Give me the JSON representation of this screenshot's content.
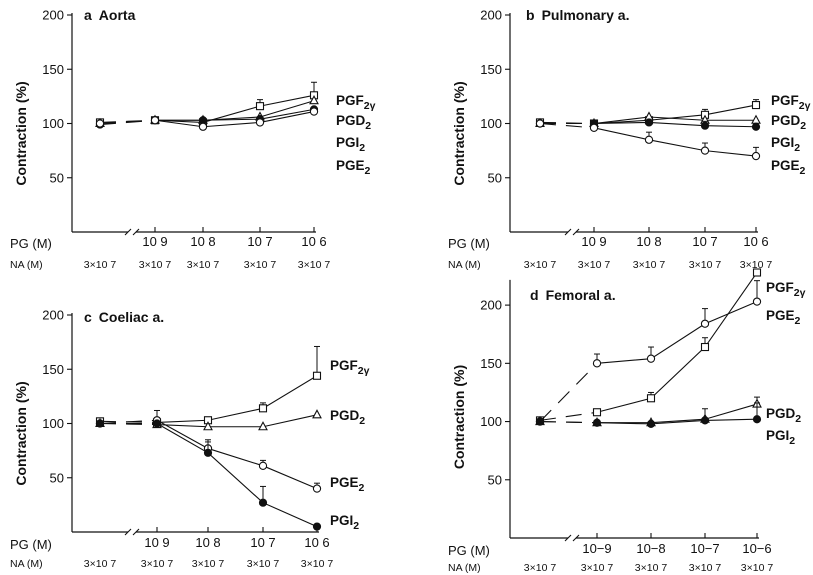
{
  "chart_data": [
    {
      "type": "line",
      "panel_letter": "a",
      "title": "Aorta",
      "ylabel": "Contraction (%)",
      "ylim": [
        0,
        200
      ],
      "yticks": [
        50,
        100,
        150,
        200
      ],
      "row_labels": {
        "pg": "PG (M)",
        "na": "NA (M)"
      },
      "x_pg_labels": [
        "",
        "10 9",
        "10 8",
        "10 7",
        "10 6"
      ],
      "x_na_labels": [
        "3×10 7",
        "3×10 7",
        "3×10 7",
        "3×10 7",
        "3×10 7"
      ],
      "series": [
        {
          "name": "PGF2γ",
          "label_main": "PGF",
          "label_sub": "2γ",
          "marker": "square",
          "values": [
            101,
            103,
            101,
            116,
            126
          ],
          "errors": [
            0,
            0,
            0,
            6,
            12
          ]
        },
        {
          "name": "PGD2",
          "label_main": "PGD",
          "label_sub": "2",
          "marker": "triangle",
          "values": [
            100,
            103,
            103,
            106,
            121
          ],
          "errors": [
            0,
            0,
            0,
            0,
            0
          ]
        },
        {
          "name": "PGI2",
          "label_main": "PGI",
          "label_sub": "2",
          "marker": "filled",
          "values": [
            99,
            103,
            103,
            104,
            113
          ],
          "errors": [
            0,
            0,
            0,
            0,
            0
          ]
        },
        {
          "name": "PGE2",
          "label_main": "PGE",
          "label_sub": "2",
          "marker": "circle",
          "values": [
            100,
            103,
            97,
            101,
            111
          ],
          "errors": [
            0,
            0,
            0,
            0,
            0
          ]
        }
      ]
    },
    {
      "type": "line",
      "panel_letter": "b",
      "title": "Pulmonary a.",
      "ylabel": "Contraction (%)",
      "ylim": [
        0,
        200
      ],
      "yticks": [
        50,
        100,
        150,
        200
      ],
      "row_labels": {
        "pg": "PG (M)",
        "na": "NA (M)"
      },
      "x_pg_labels": [
        "",
        "10 9",
        "10 8",
        "10 7",
        "10 6"
      ],
      "x_na_labels": [
        "3×10 7",
        "3×10 7",
        "3×10 7",
        "3×10 7",
        "3×10 7"
      ],
      "series": [
        {
          "name": "PGF2γ",
          "label_main": "PGF",
          "label_sub": "2γ",
          "marker": "square",
          "values": [
            101,
            100,
            103,
            108,
            117
          ],
          "errors": [
            0,
            0,
            0,
            5,
            5
          ]
        },
        {
          "name": "PGD2",
          "label_main": "PGD",
          "label_sub": "2",
          "marker": "triangle",
          "values": [
            100,
            100,
            106,
            103,
            103
          ],
          "errors": [
            0,
            0,
            0,
            0,
            0
          ]
        },
        {
          "name": "PGI2",
          "label_main": "PGI",
          "label_sub": "2",
          "marker": "filled",
          "values": [
            100,
            100,
            101,
            98,
            97
          ],
          "errors": [
            0,
            0,
            0,
            4,
            0
          ]
        },
        {
          "name": "PGE2",
          "label_main": "PGE",
          "label_sub": "2",
          "marker": "circle",
          "values": [
            100,
            96,
            85,
            75,
            70
          ],
          "errors": [
            0,
            0,
            7,
            7,
            8
          ]
        }
      ]
    },
    {
      "type": "line",
      "panel_letter": "c",
      "title": "Coeliac a.",
      "ylabel": "Contraction (%)",
      "ylim": [
        0,
        200
      ],
      "yticks": [
        50,
        100,
        150,
        200
      ],
      "row_labels": {
        "pg": "PG (M)",
        "na": "NA (M)"
      },
      "x_pg_labels": [
        "",
        "10 9",
        "10 8",
        "10 7",
        "10 6"
      ],
      "x_na_labels": [
        "3×10 7",
        "3×10 7",
        "3×10 7",
        "3×10 7",
        "3×10 7"
      ],
      "series": [
        {
          "name": "PGF2γ",
          "label_main": "PGF",
          "label_sub": "2γ",
          "marker": "square",
          "values": [
            102,
            101,
            103,
            114,
            144
          ],
          "errors": [
            0,
            0,
            0,
            5,
            27
          ]
        },
        {
          "name": "PGD2",
          "label_main": "PGD",
          "label_sub": "2",
          "marker": "triangle",
          "values": [
            100,
            99,
            97,
            97,
            108
          ],
          "errors": [
            0,
            0,
            0,
            0,
            0
          ]
        },
        {
          "name": "PGE2",
          "label_main": "PGE",
          "label_sub": "2",
          "marker": "circle",
          "values": [
            100,
            103,
            77,
            61,
            40
          ],
          "errors": [
            0,
            9,
            6,
            5,
            5
          ]
        },
        {
          "name": "PGI2",
          "label_main": "PGI",
          "label_sub": "2",
          "marker": "filled",
          "values": [
            100,
            100,
            73,
            27,
            5
          ],
          "errors": [
            0,
            0,
            12,
            15,
            0
          ]
        }
      ]
    },
    {
      "type": "line",
      "panel_letter": "d",
      "title": "Femoral a.",
      "ylabel": "Contraction (%)",
      "ylim": [
        0,
        225
      ],
      "yticks": [
        50,
        100,
        150,
        200
      ],
      "row_labels": {
        "pg": "PG (M)",
        "na": "NA (M)"
      },
      "x_pg_labels": [
        "",
        "10−9",
        "10−8",
        "10−7",
        "10−6"
      ],
      "x_na_labels": [
        "3×10 7",
        "3×10 7",
        "3×10 7",
        "3×10 7",
        "3×10 7"
      ],
      "series": [
        {
          "name": "PGF2γ",
          "label_main": "PGF",
          "label_sub": "2γ",
          "marker": "square",
          "values": [
            101,
            108,
            120,
            164,
            228
          ],
          "errors": [
            0,
            0,
            5,
            8,
            0
          ]
        },
        {
          "name": "PGE2",
          "label_main": "PGE",
          "label_sub": "2",
          "marker": "circle",
          "values": [
            100,
            150,
            154,
            184,
            203
          ],
          "errors": [
            0,
            8,
            10,
            13,
            18
          ]
        },
        {
          "name": "PGD2",
          "label_main": "PGD",
          "label_sub": "2",
          "marker": "triangle",
          "values": [
            100,
            99,
            99,
            102,
            115
          ],
          "errors": [
            0,
            0,
            0,
            0,
            6
          ]
        },
        {
          "name": "PGI2",
          "label_main": "PGI",
          "label_sub": "2",
          "marker": "filled",
          "values": [
            100,
            99,
            98,
            101,
            102
          ],
          "errors": [
            0,
            0,
            0,
            10,
            14
          ]
        }
      ]
    }
  ]
}
